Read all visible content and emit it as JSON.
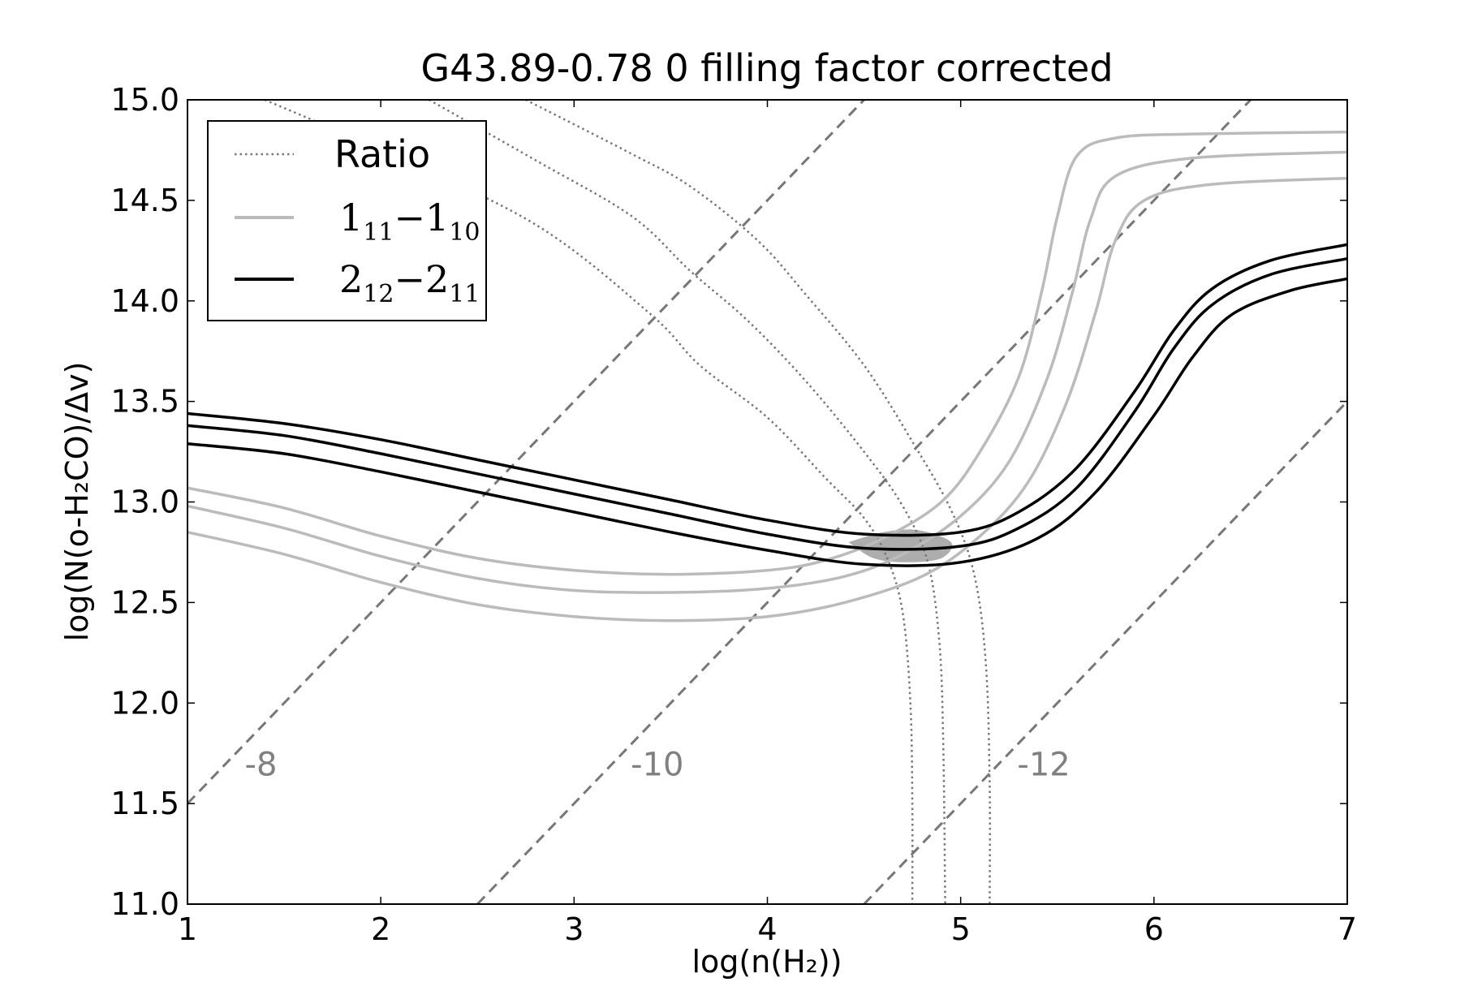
{
  "chart_data": {
    "type": "line",
    "title": "G43.89-0.78 0 filling factor corrected",
    "xlabel": "log(n(H₂))",
    "ylabel": "log(N(o-H₂CO)/Δv)",
    "xlim": [
      1,
      7
    ],
    "ylim": [
      11.0,
      15.0
    ],
    "xticks": [
      "1",
      "2",
      "3",
      "4",
      "5",
      "6",
      "7"
    ],
    "yticks": [
      "11.0",
      "11.5",
      "12.0",
      "12.5",
      "13.0",
      "13.5",
      "14.0",
      "14.5",
      "15.0"
    ],
    "grid": false,
    "legend": {
      "placement": "top-left",
      "entries": [
        {
          "label": "Ratio",
          "style": "dotted",
          "color": "#777777"
        },
        {
          "label": "1₁₁−1₁₀",
          "base1": "1",
          "sub1": "11",
          "base2": "1",
          "sub2": "10",
          "style": "solid",
          "color": "#bbbbbb"
        },
        {
          "label": "2₁₂−2₁₁",
          "base1": "2",
          "sub1": "12",
          "base2": "2",
          "sub2": "11",
          "style": "solid",
          "color": "#000000"
        }
      ]
    },
    "series": [
      {
        "style": "solid",
        "color": "#bbbbbb",
        "points": [
          [
            1.0,
            13.07
          ],
          [
            1.5,
            12.97
          ],
          [
            2.0,
            12.83
          ],
          [
            2.5,
            12.72
          ],
          [
            3.0,
            12.66
          ],
          [
            3.5,
            12.64
          ],
          [
            4.0,
            12.66
          ],
          [
            4.3,
            12.71
          ],
          [
            4.6,
            12.82
          ],
          [
            4.9,
            13.0
          ],
          [
            5.1,
            13.25
          ],
          [
            5.3,
            13.62
          ],
          [
            5.42,
            14.05
          ],
          [
            5.5,
            14.42
          ],
          [
            5.6,
            14.72
          ],
          [
            5.8,
            14.81
          ],
          [
            6.2,
            14.83
          ],
          [
            7.0,
            14.84
          ]
        ]
      },
      {
        "style": "solid",
        "color": "#bbbbbb",
        "points": [
          [
            1.0,
            12.98
          ],
          [
            1.5,
            12.87
          ],
          [
            2.0,
            12.73
          ],
          [
            2.5,
            12.62
          ],
          [
            3.0,
            12.56
          ],
          [
            3.5,
            12.55
          ],
          [
            4.0,
            12.57
          ],
          [
            4.4,
            12.63
          ],
          [
            4.7,
            12.74
          ],
          [
            5.0,
            12.93
          ],
          [
            5.25,
            13.2
          ],
          [
            5.45,
            13.62
          ],
          [
            5.58,
            14.05
          ],
          [
            5.67,
            14.4
          ],
          [
            5.8,
            14.62
          ],
          [
            6.2,
            14.71
          ],
          [
            7.0,
            14.74
          ]
        ]
      },
      {
        "style": "solid",
        "color": "#bbbbbb",
        "points": [
          [
            1.0,
            12.85
          ],
          [
            1.5,
            12.74
          ],
          [
            2.0,
            12.6
          ],
          [
            2.5,
            12.49
          ],
          [
            3.0,
            12.43
          ],
          [
            3.5,
            12.41
          ],
          [
            4.0,
            12.43
          ],
          [
            4.4,
            12.5
          ],
          [
            4.8,
            12.63
          ],
          [
            5.1,
            12.83
          ],
          [
            5.35,
            13.1
          ],
          [
            5.55,
            13.5
          ],
          [
            5.7,
            13.95
          ],
          [
            5.8,
            14.3
          ],
          [
            5.95,
            14.5
          ],
          [
            6.3,
            14.58
          ],
          [
            7.0,
            14.61
          ]
        ]
      },
      {
        "style": "solid",
        "color": "#000000",
        "points": [
          [
            1.0,
            13.44
          ],
          [
            1.5,
            13.39
          ],
          [
            2.0,
            13.31
          ],
          [
            2.5,
            13.21
          ],
          [
            3.0,
            13.11
          ],
          [
            3.5,
            13.01
          ],
          [
            4.0,
            12.91
          ],
          [
            4.5,
            12.84
          ],
          [
            5.0,
            12.85
          ],
          [
            5.3,
            12.95
          ],
          [
            5.6,
            13.17
          ],
          [
            5.9,
            13.55
          ],
          [
            6.1,
            13.85
          ],
          [
            6.3,
            14.06
          ],
          [
            6.6,
            14.2
          ],
          [
            7.0,
            14.28
          ]
        ]
      },
      {
        "style": "solid",
        "color": "#000000",
        "points": [
          [
            1.0,
            13.38
          ],
          [
            1.5,
            13.33
          ],
          [
            2.0,
            13.24
          ],
          [
            2.5,
            13.14
          ],
          [
            3.0,
            13.04
          ],
          [
            3.5,
            12.94
          ],
          [
            4.0,
            12.84
          ],
          [
            4.5,
            12.77
          ],
          [
            5.0,
            12.78
          ],
          [
            5.3,
            12.87
          ],
          [
            5.6,
            13.07
          ],
          [
            5.9,
            13.45
          ],
          [
            6.1,
            13.76
          ],
          [
            6.3,
            13.98
          ],
          [
            6.6,
            14.13
          ],
          [
            7.0,
            14.21
          ]
        ]
      },
      {
        "style": "solid",
        "color": "#000000",
        "points": [
          [
            1.0,
            13.29
          ],
          [
            1.5,
            13.24
          ],
          [
            2.0,
            13.15
          ],
          [
            2.5,
            13.05
          ],
          [
            3.0,
            12.95
          ],
          [
            3.5,
            12.85
          ],
          [
            4.0,
            12.76
          ],
          [
            4.5,
            12.69
          ],
          [
            5.0,
            12.7
          ],
          [
            5.4,
            12.82
          ],
          [
            5.7,
            13.05
          ],
          [
            6.0,
            13.43
          ],
          [
            6.2,
            13.72
          ],
          [
            6.4,
            13.93
          ],
          [
            6.7,
            14.05
          ],
          [
            7.0,
            14.11
          ]
        ]
      },
      {
        "style": "dotted",
        "color": "#777777",
        "points": [
          [
            1.4,
            15.0
          ],
          [
            2.0,
            14.75
          ],
          [
            2.8,
            14.38
          ],
          [
            3.4,
            13.93
          ],
          [
            3.65,
            13.68
          ],
          [
            4.0,
            13.42
          ],
          [
            4.3,
            13.12
          ],
          [
            4.5,
            12.92
          ],
          [
            4.62,
            12.72
          ],
          [
            4.7,
            12.45
          ],
          [
            4.74,
            12.0
          ],
          [
            4.75,
            11.5
          ],
          [
            4.75,
            11.0
          ]
        ]
      },
      {
        "style": "dotted",
        "color": "#777777",
        "points": [
          [
            2.25,
            15.0
          ],
          [
            2.8,
            14.7
          ],
          [
            3.3,
            14.42
          ],
          [
            3.6,
            14.15
          ],
          [
            3.9,
            13.9
          ],
          [
            4.2,
            13.6
          ],
          [
            4.5,
            13.25
          ],
          [
            4.7,
            12.98
          ],
          [
            4.83,
            12.7
          ],
          [
            4.89,
            12.3
          ],
          [
            4.91,
            11.8
          ],
          [
            4.92,
            11.0
          ]
        ]
      },
      {
        "style": "dotted",
        "color": "#777777",
        "points": [
          [
            2.75,
            15.0
          ],
          [
            3.3,
            14.73
          ],
          [
            3.6,
            14.57
          ],
          [
            3.95,
            14.3
          ],
          [
            4.2,
            14.03
          ],
          [
            4.5,
            13.68
          ],
          [
            4.75,
            13.3
          ],
          [
            4.95,
            12.96
          ],
          [
            5.07,
            12.64
          ],
          [
            5.13,
            12.2
          ],
          [
            5.15,
            11.6
          ],
          [
            5.15,
            11.0
          ]
        ]
      },
      {
        "style": "dashed",
        "color": "#777777",
        "label": "-8",
        "points": [
          [
            1.0,
            11.5
          ],
          [
            4.5,
            15.0
          ]
        ]
      },
      {
        "style": "dashed",
        "color": "#777777",
        "label": "-10",
        "points": [
          [
            2.5,
            11.0
          ],
          [
            6.5,
            15.0
          ]
        ]
      },
      {
        "style": "dashed",
        "color": "#777777",
        "label": "-12",
        "points": [
          [
            4.5,
            11.0
          ],
          [
            7.0,
            13.5
          ]
        ]
      }
    ],
    "shaded_region": {
      "color": "#999999",
      "points": [
        [
          4.42,
          12.8
        ],
        [
          4.6,
          12.85
        ],
        [
          4.78,
          12.86
        ],
        [
          4.95,
          12.8
        ],
        [
          4.9,
          12.72
        ],
        [
          4.72,
          12.7
        ],
        [
          4.55,
          12.72
        ]
      ]
    },
    "annotations": [
      {
        "text": "-8",
        "x": 1.38,
        "y": 11.64
      },
      {
        "text": "-10",
        "x": 3.43,
        "y": 11.64
      },
      {
        "text": "-12",
        "x": 5.43,
        "y": 11.64
      }
    ]
  }
}
